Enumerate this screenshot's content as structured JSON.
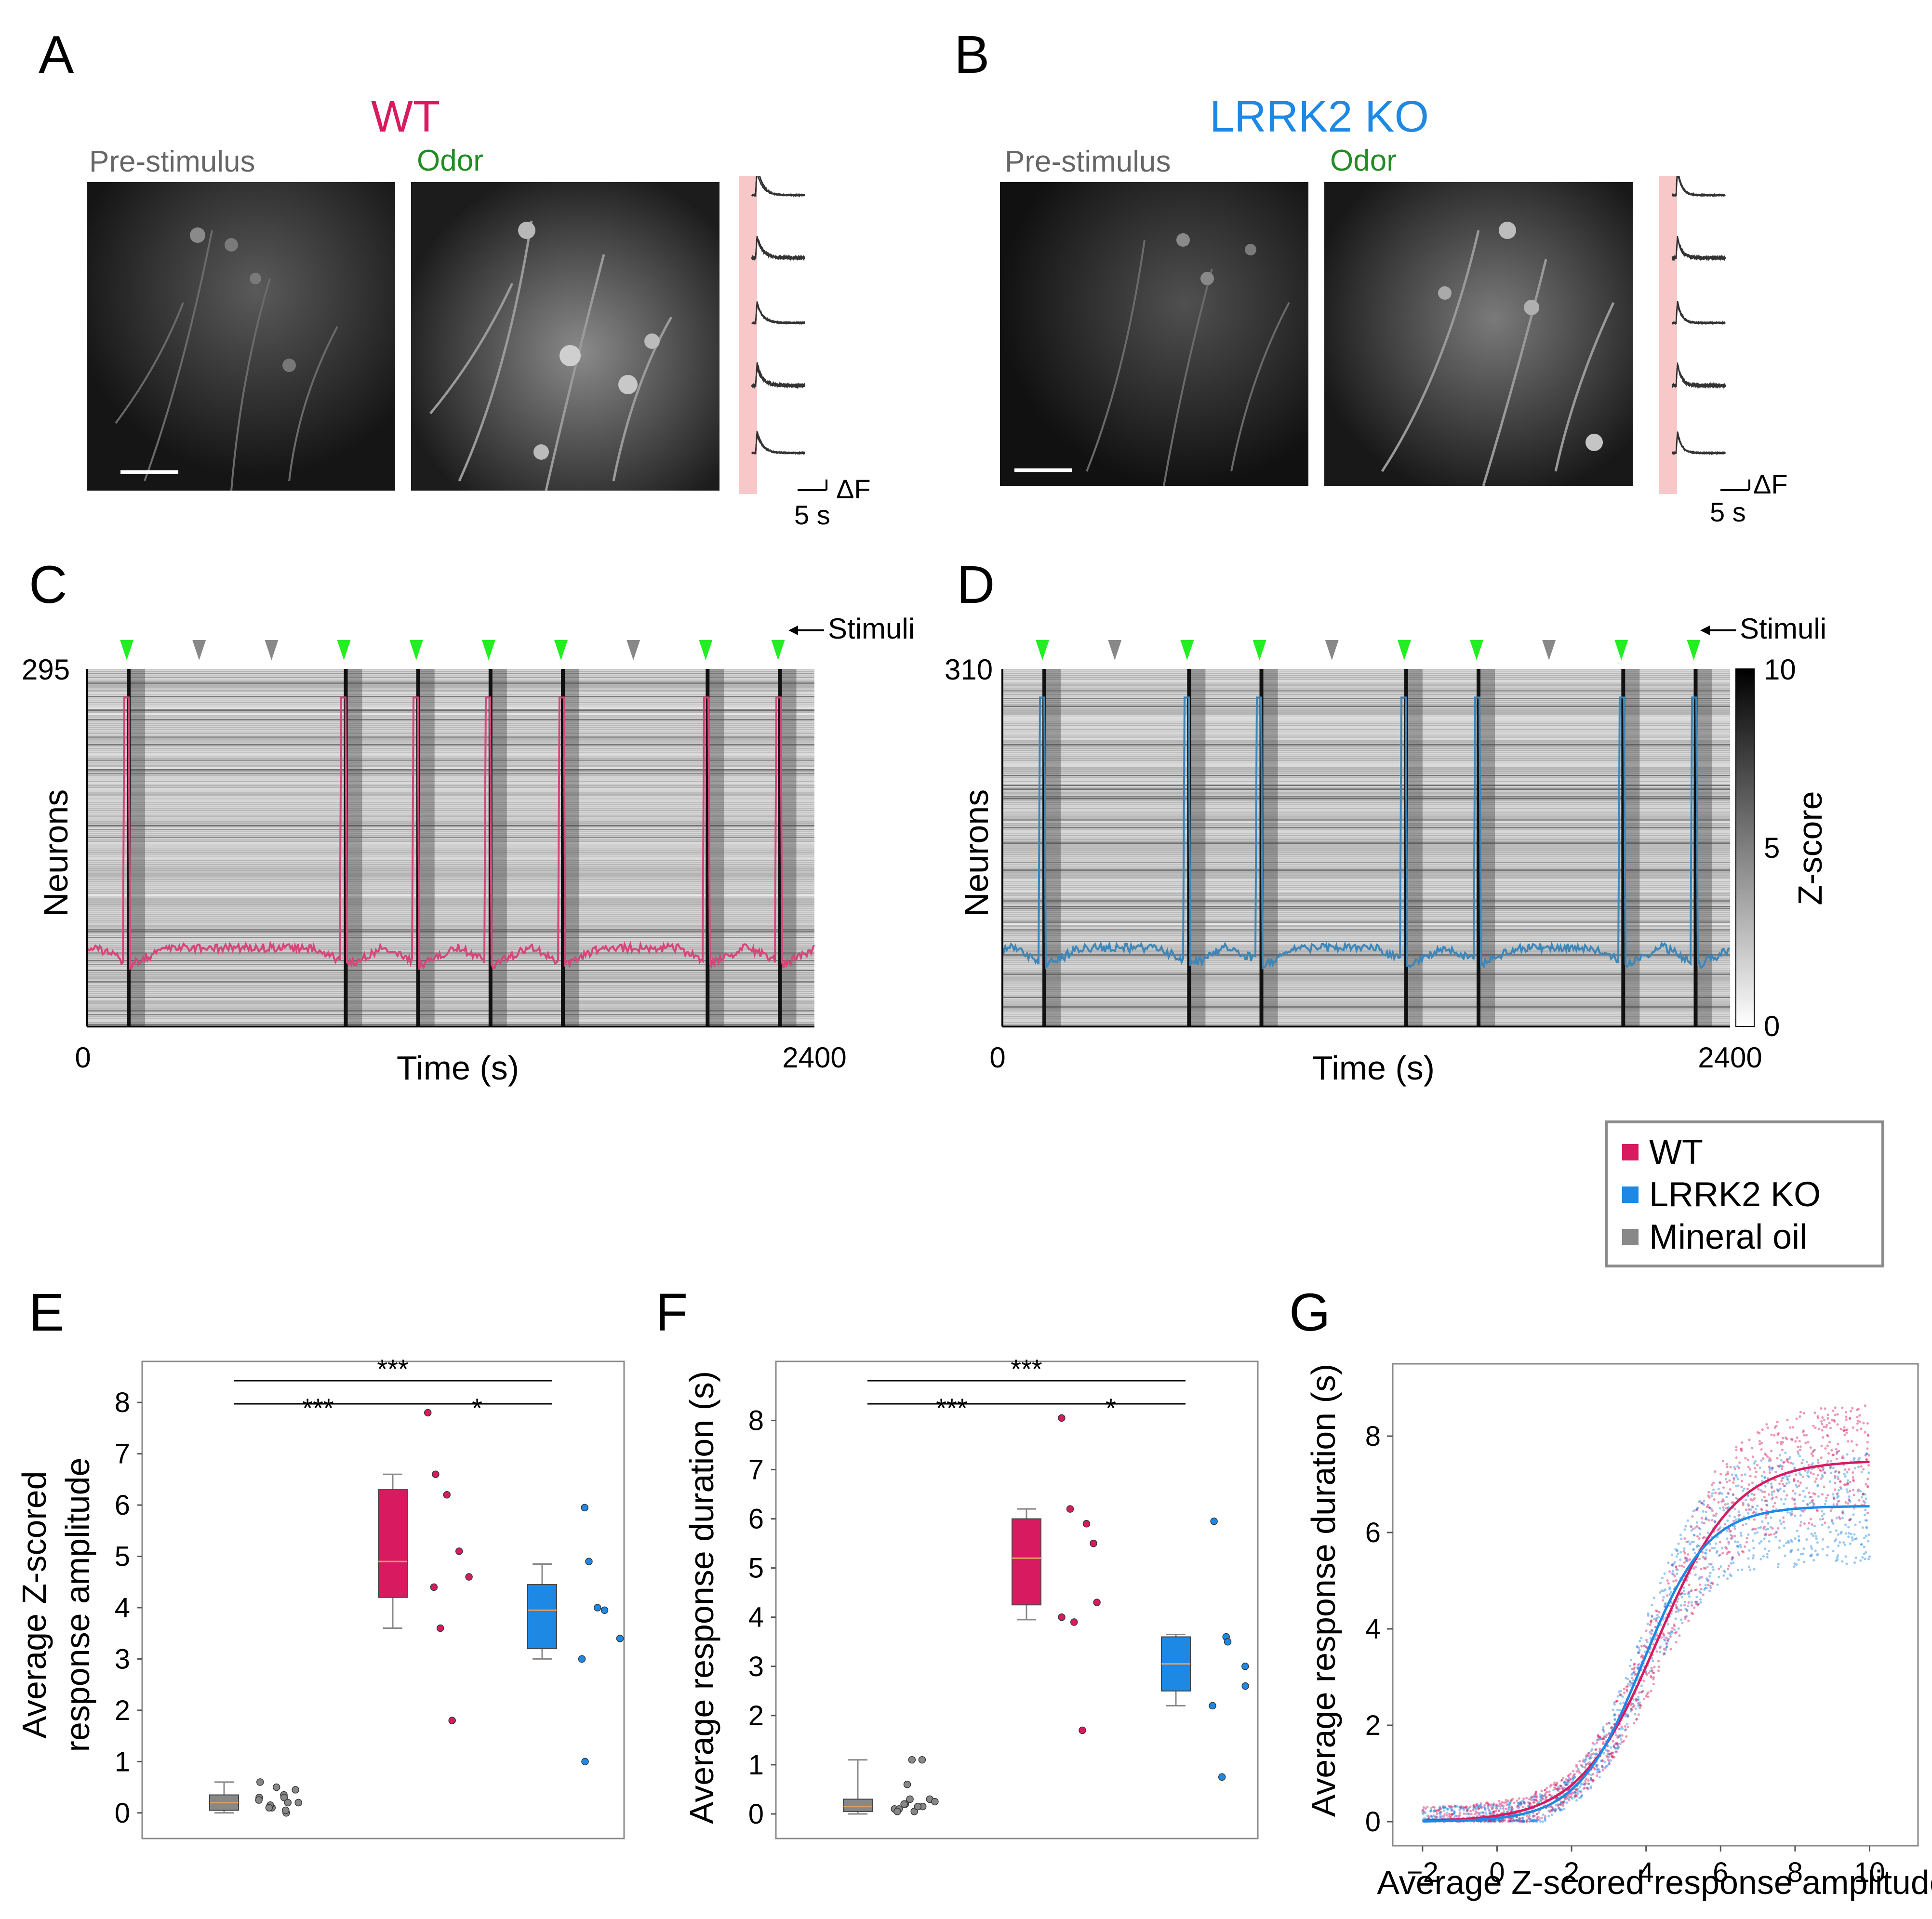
{
  "panels": {
    "A": {
      "letter": "A",
      "title": "WT",
      "pre": "Pre-stimulus",
      "odor": "Odor",
      "scale_dF": "ΔF",
      "scale_t": "5 s"
    },
    "B": {
      "letter": "B",
      "title": "LRRK2 KO",
      "pre": "Pre-stimulus",
      "odor": "Odor",
      "scale_dF": "ΔF",
      "scale_t": "5 s"
    },
    "C": {
      "letter": "C",
      "ytop": "295",
      "ylabel": "Neurons",
      "xlabel": "Time (s)",
      "x0": "0",
      "x1": "2400",
      "stimuli": "Stimuli",
      "stim_pattern": [
        "odor",
        "oil",
        "oil",
        "odor",
        "odor",
        "odor",
        "odor",
        "oil",
        "odor",
        "odor"
      ]
    },
    "D": {
      "letter": "D",
      "ytop": "310",
      "ylabel": "Neurons",
      "xlabel": "Time (s)",
      "x0": "0",
      "x1": "2400",
      "stimuli": "Stimuli",
      "stim_pattern": [
        "odor",
        "oil",
        "odor",
        "odor",
        "oil",
        "odor",
        "odor",
        "oil",
        "odor",
        "odor"
      ],
      "cbar_label": "Z-score",
      "cbar_ticks": [
        "10",
        "5",
        "0"
      ]
    },
    "E": {
      "letter": "E",
      "ylabel1": "Average Z-scored",
      "ylabel2": "response amplitude",
      "sig_top": "***",
      "sig_left": "***",
      "sig_right": "*"
    },
    "F": {
      "letter": "F",
      "ylabel": "Average response duration (s)",
      "sig_top": "***",
      "sig_left": "***",
      "sig_right": "*"
    },
    "G": {
      "letter": "G",
      "ylabel": "Average response duration (s)",
      "xlabel": "Average Z-scored response amplitude"
    }
  },
  "legend": {
    "items": [
      {
        "label": "WT",
        "color": "#d81b60"
      },
      {
        "label": "LRRK2 KO",
        "color": "#1e88e5"
      },
      {
        "label": "Mineral oil",
        "color": "#888888"
      }
    ]
  },
  "colors": {
    "wt": "#d81b60",
    "ko": "#1e88e5",
    "oil": "#888888",
    "odor_marker": "#22ee22",
    "oil_marker": "#888888",
    "wt_trace": "#d6467a",
    "ko_trace": "#3d86b8"
  },
  "chart_data": [
    {
      "type": "box",
      "id": "E",
      "ylabel": "Average Z-scored response amplitude",
      "ylim": [
        -0.5,
        8.8
      ],
      "yticks": [
        0,
        1,
        2,
        3,
        4,
        5,
        6,
        7,
        8
      ],
      "series": [
        {
          "name": "Mineral oil",
          "color": "#888888",
          "box": {
            "q1": 0.05,
            "median": 0.2,
            "q3": 0.35,
            "whisker_low": 0.0,
            "whisker_high": 0.6
          },
          "points": [
            0.3,
            0.1,
            0.5,
            0.0,
            0.2,
            0.6,
            0.15,
            0.35,
            0.05,
            0.45,
            0.25,
            0.1,
            0.3,
            0.2
          ]
        },
        {
          "name": "WT",
          "color": "#d81b60",
          "box": {
            "q1": 4.2,
            "median": 4.9,
            "q3": 6.3,
            "whisker_low": 3.6,
            "whisker_high": 6.6
          },
          "points": [
            7.8,
            6.6,
            6.2,
            5.1,
            4.6,
            4.4,
            3.6,
            1.8
          ]
        },
        {
          "name": "LRRK2 KO",
          "color": "#1e88e5",
          "box": {
            "q1": 3.2,
            "median": 3.95,
            "q3": 4.45,
            "whisker_low": 3.0,
            "whisker_high": 4.85
          },
          "points": [
            5.95,
            4.9,
            4.0,
            3.95,
            3.4,
            3.0,
            1.0
          ]
        }
      ]
    },
    {
      "type": "box",
      "id": "F",
      "ylabel": "Average response duration (s)",
      "ylim": [
        -0.5,
        9.2
      ],
      "yticks": [
        0,
        1,
        2,
        3,
        4,
        5,
        6,
        7,
        8
      ],
      "series": [
        {
          "name": "Mineral oil",
          "color": "#888888",
          "box": {
            "q1": 0.05,
            "median": 0.15,
            "q3": 0.3,
            "whisker_low": 0.0,
            "whisker_high": 1.1
          },
          "points": [
            0.1,
            0.2,
            0.05,
            0.15,
            0.3,
            0.1,
            0.6,
            1.1,
            1.1,
            0.25,
            0.05,
            0.2,
            0.3,
            0.15
          ]
        },
        {
          "name": "WT",
          "color": "#d81b60",
          "box": {
            "q1": 4.25,
            "median": 5.2,
            "q3": 6.0,
            "whisker_low": 3.95,
            "whisker_high": 6.2
          },
          "points": [
            8.05,
            6.2,
            5.9,
            5.5,
            4.3,
            4.0,
            3.9,
            1.7
          ]
        },
        {
          "name": "LRRK2 KO",
          "color": "#1e88e5",
          "box": {
            "q1": 2.5,
            "median": 3.05,
            "q3": 3.6,
            "whisker_low": 2.2,
            "whisker_high": 3.65
          },
          "points": [
            5.95,
            3.6,
            3.5,
            3.0,
            2.6,
            2.2,
            0.75
          ]
        }
      ]
    },
    {
      "type": "scatter",
      "id": "G",
      "xlabel": "Average Z-scored response amplitude",
      "ylabel": "Average response duration (s)",
      "xlim": [
        -2.8,
        11.3
      ],
      "ylim": [
        -0.5,
        9.5
      ],
      "xticks": [
        -2,
        0,
        2,
        4,
        6,
        8,
        10
      ],
      "yticks": [
        0,
        2,
        4,
        6,
        8
      ],
      "fits": [
        {
          "name": "WT",
          "color": "#d81b60",
          "ymax": 7.5,
          "x0": 4.3,
          "k": 0.95
        },
        {
          "name": "LRRK2 KO",
          "color": "#1e88e5",
          "ymax": 6.55,
          "x0": 3.9,
          "k": 1.15
        }
      ]
    }
  ]
}
